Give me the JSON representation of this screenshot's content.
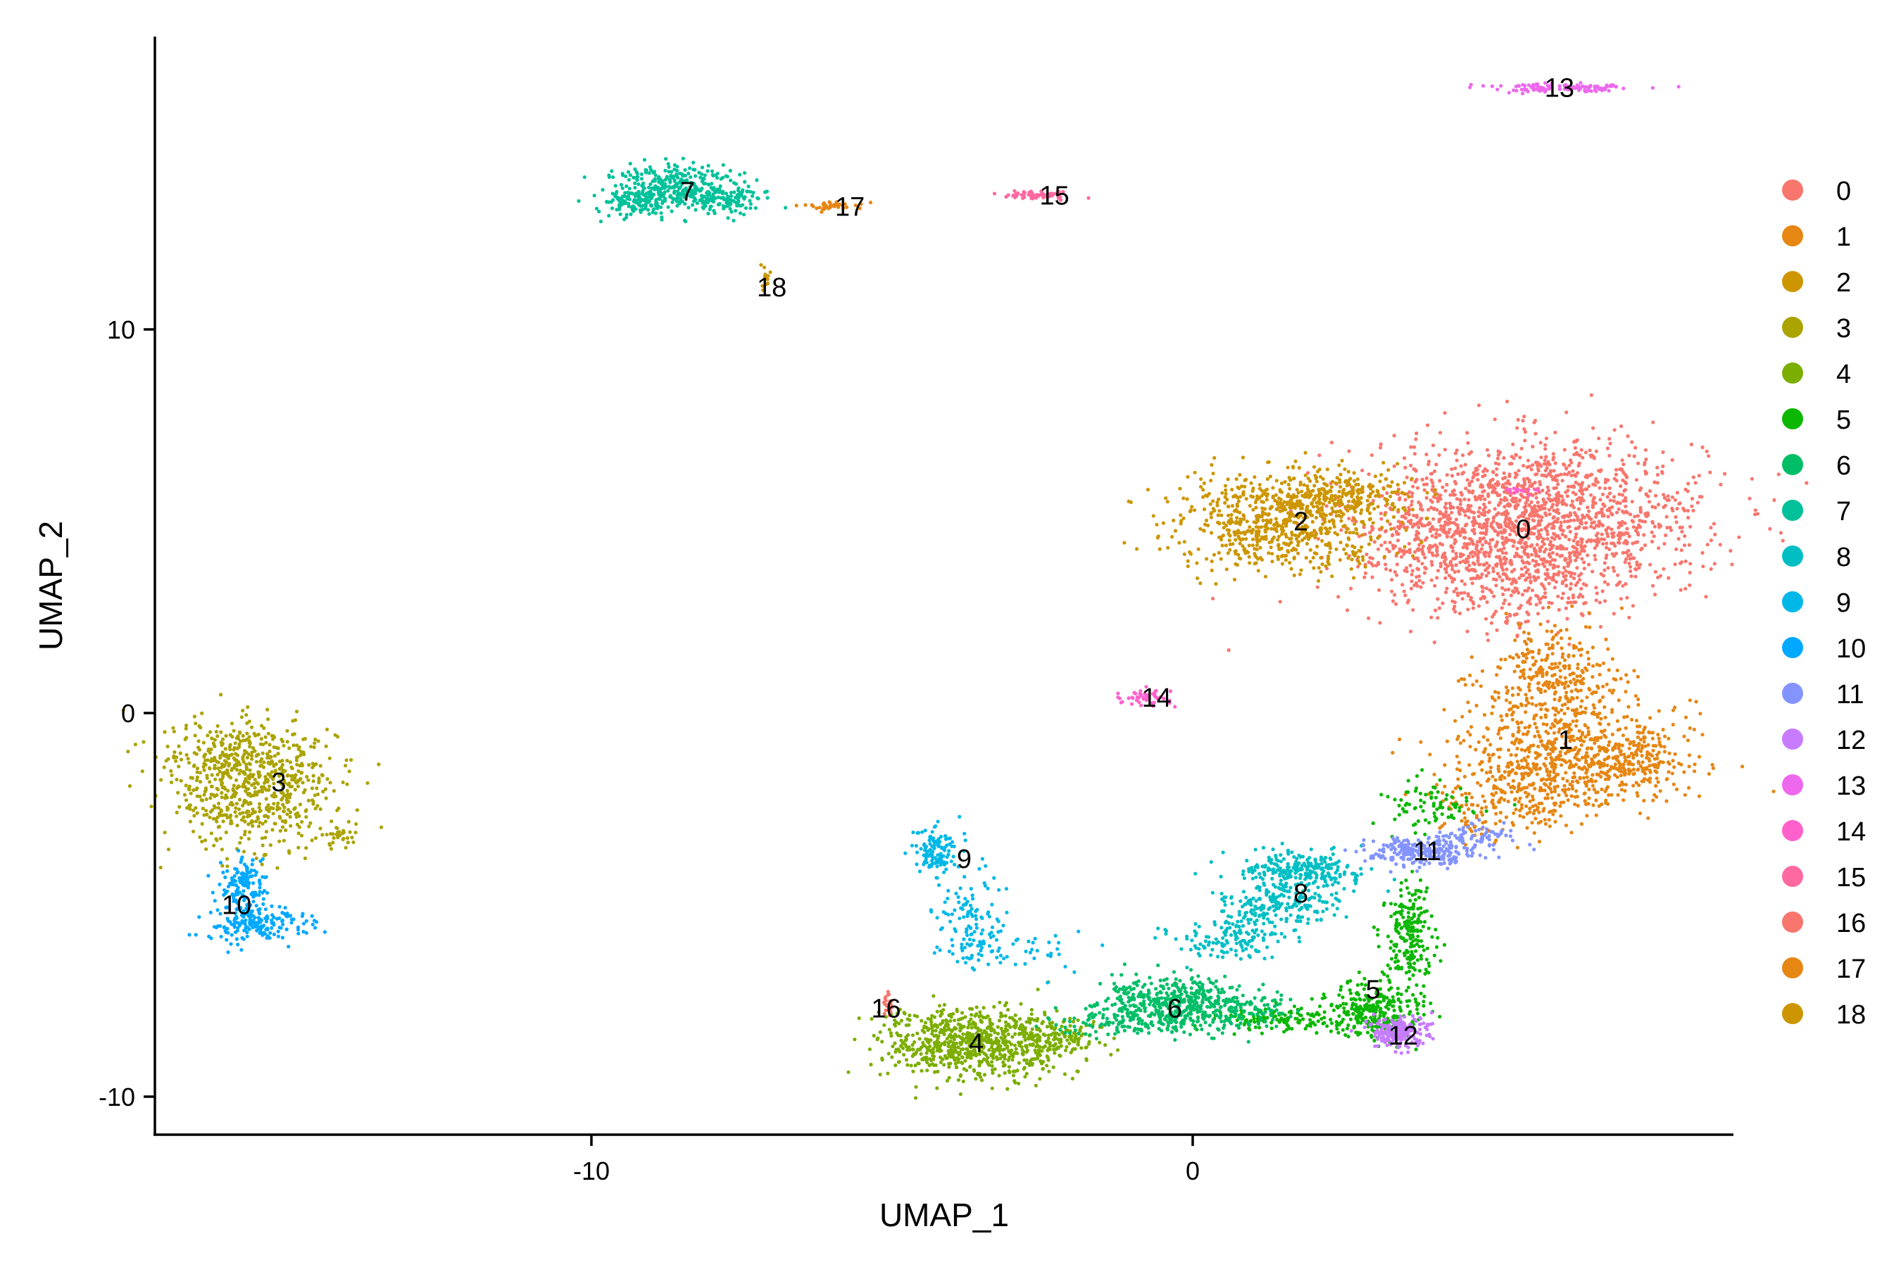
{
  "chart_data": {
    "type": "scatter",
    "xlabel": "UMAP_1",
    "ylabel": "UMAP_2",
    "xlim": [
      -17.5,
      8.9
    ],
    "ylim": [
      -11,
      17.8
    ],
    "x_ticks": [
      -10,
      0
    ],
    "y_ticks": [
      10,
      0,
      -10
    ],
    "x_tick_labels": [
      "-10",
      "0"
    ],
    "y_tick_labels": [
      "10",
      "0",
      "-10"
    ],
    "grid": false,
    "legend_position": "right",
    "legend": [
      "0",
      "1",
      "2",
      "3",
      "4",
      "5",
      "6",
      "7",
      "8",
      "9",
      "10",
      "11",
      "12",
      "13",
      "14",
      "15",
      "16",
      "17",
      "18"
    ],
    "series": [
      {
        "name": "0",
        "color": "#F8766D",
        "center": [
          5.5,
          4.8
        ],
        "label_pos": [
          5.5,
          4.8
        ]
      },
      {
        "name": "1",
        "color": "#E68613",
        "center": [
          6.2,
          -0.5
        ],
        "label_pos": [
          6.2,
          -0.7
        ]
      },
      {
        "name": "2",
        "color": "#CD9600",
        "center": [
          1.6,
          4.9
        ],
        "label_pos": [
          1.8,
          5.0
        ]
      },
      {
        "name": "3",
        "color": "#ABA300",
        "center": [
          -15.6,
          -1.8
        ],
        "label_pos": [
          -15.2,
          -1.8
        ]
      },
      {
        "name": "4",
        "color": "#7CAE00",
        "center": [
          -3.6,
          -8.6
        ],
        "label_pos": [
          -3.6,
          -8.6
        ]
      },
      {
        "name": "5",
        "color": "#0CB702",
        "center": [
          3.0,
          -7.5
        ],
        "label_pos": [
          3.0,
          -7.2
        ]
      },
      {
        "name": "6",
        "color": "#00BE67",
        "center": [
          -0.4,
          -7.8
        ],
        "label_pos": [
          -0.3,
          -7.7
        ]
      },
      {
        "name": "7",
        "color": "#00C19A",
        "center": [
          -8.6,
          13.6
        ],
        "label_pos": [
          -8.4,
          13.6
        ]
      },
      {
        "name": "8",
        "color": "#00BFC4",
        "center": [
          1.7,
          -4.7
        ],
        "label_pos": [
          1.8,
          -4.7
        ]
      },
      {
        "name": "9",
        "color": "#00B8E7",
        "center": [
          -4.3,
          -4.2
        ],
        "label_pos": [
          -3.8,
          -3.8
        ]
      },
      {
        "name": "10",
        "color": "#00A9FF",
        "center": [
          -15.9,
          -5.0
        ],
        "label_pos": [
          -15.9,
          -5.0
        ]
      },
      {
        "name": "11",
        "color": "#8494FF",
        "center": [
          3.8,
          -3.6
        ],
        "label_pos": [
          3.9,
          -3.6
        ]
      },
      {
        "name": "12",
        "color": "#C77CFF",
        "center": [
          3.3,
          -8.2
        ],
        "label_pos": [
          3.5,
          -8.4
        ]
      },
      {
        "name": "13",
        "color": "#ED68ED",
        "center": [
          6.1,
          16.3
        ],
        "label_pos": [
          6.1,
          16.3
        ]
      },
      {
        "name": "14",
        "color": "#FF61CC",
        "center": [
          -0.8,
          0.4
        ],
        "label_pos": [
          -0.6,
          0.4
        ]
      },
      {
        "name": "15",
        "color": "#FF68A1",
        "center": [
          -2.7,
          13.5
        ],
        "label_pos": [
          -2.3,
          13.5
        ]
      },
      {
        "name": "16",
        "color": "#F8766D",
        "center": [
          -5.1,
          -7.6
        ],
        "label_pos": [
          -5.1,
          -7.7
        ]
      },
      {
        "name": "17",
        "color": "#E68613",
        "center": [
          -6.0,
          13.2
        ],
        "label_pos": [
          -5.7,
          13.2
        ]
      },
      {
        "name": "18",
        "color": "#CD9600",
        "center": [
          -7.1,
          11.4
        ],
        "label_pos": [
          -7.0,
          11.1
        ]
      }
    ]
  },
  "legend_colors": [
    "#F8766D",
    "#E68613",
    "#CD9600",
    "#ABA300",
    "#7CAE00",
    "#0CB702",
    "#00BE67",
    "#00C19A",
    "#00BFC4",
    "#00B8E7",
    "#00A9FF",
    "#8494FF",
    "#C77CFF",
    "#ED68ED",
    "#FF61CC",
    "#FF68A1",
    "#F8766D",
    "#E68613",
    "#CD9600"
  ]
}
